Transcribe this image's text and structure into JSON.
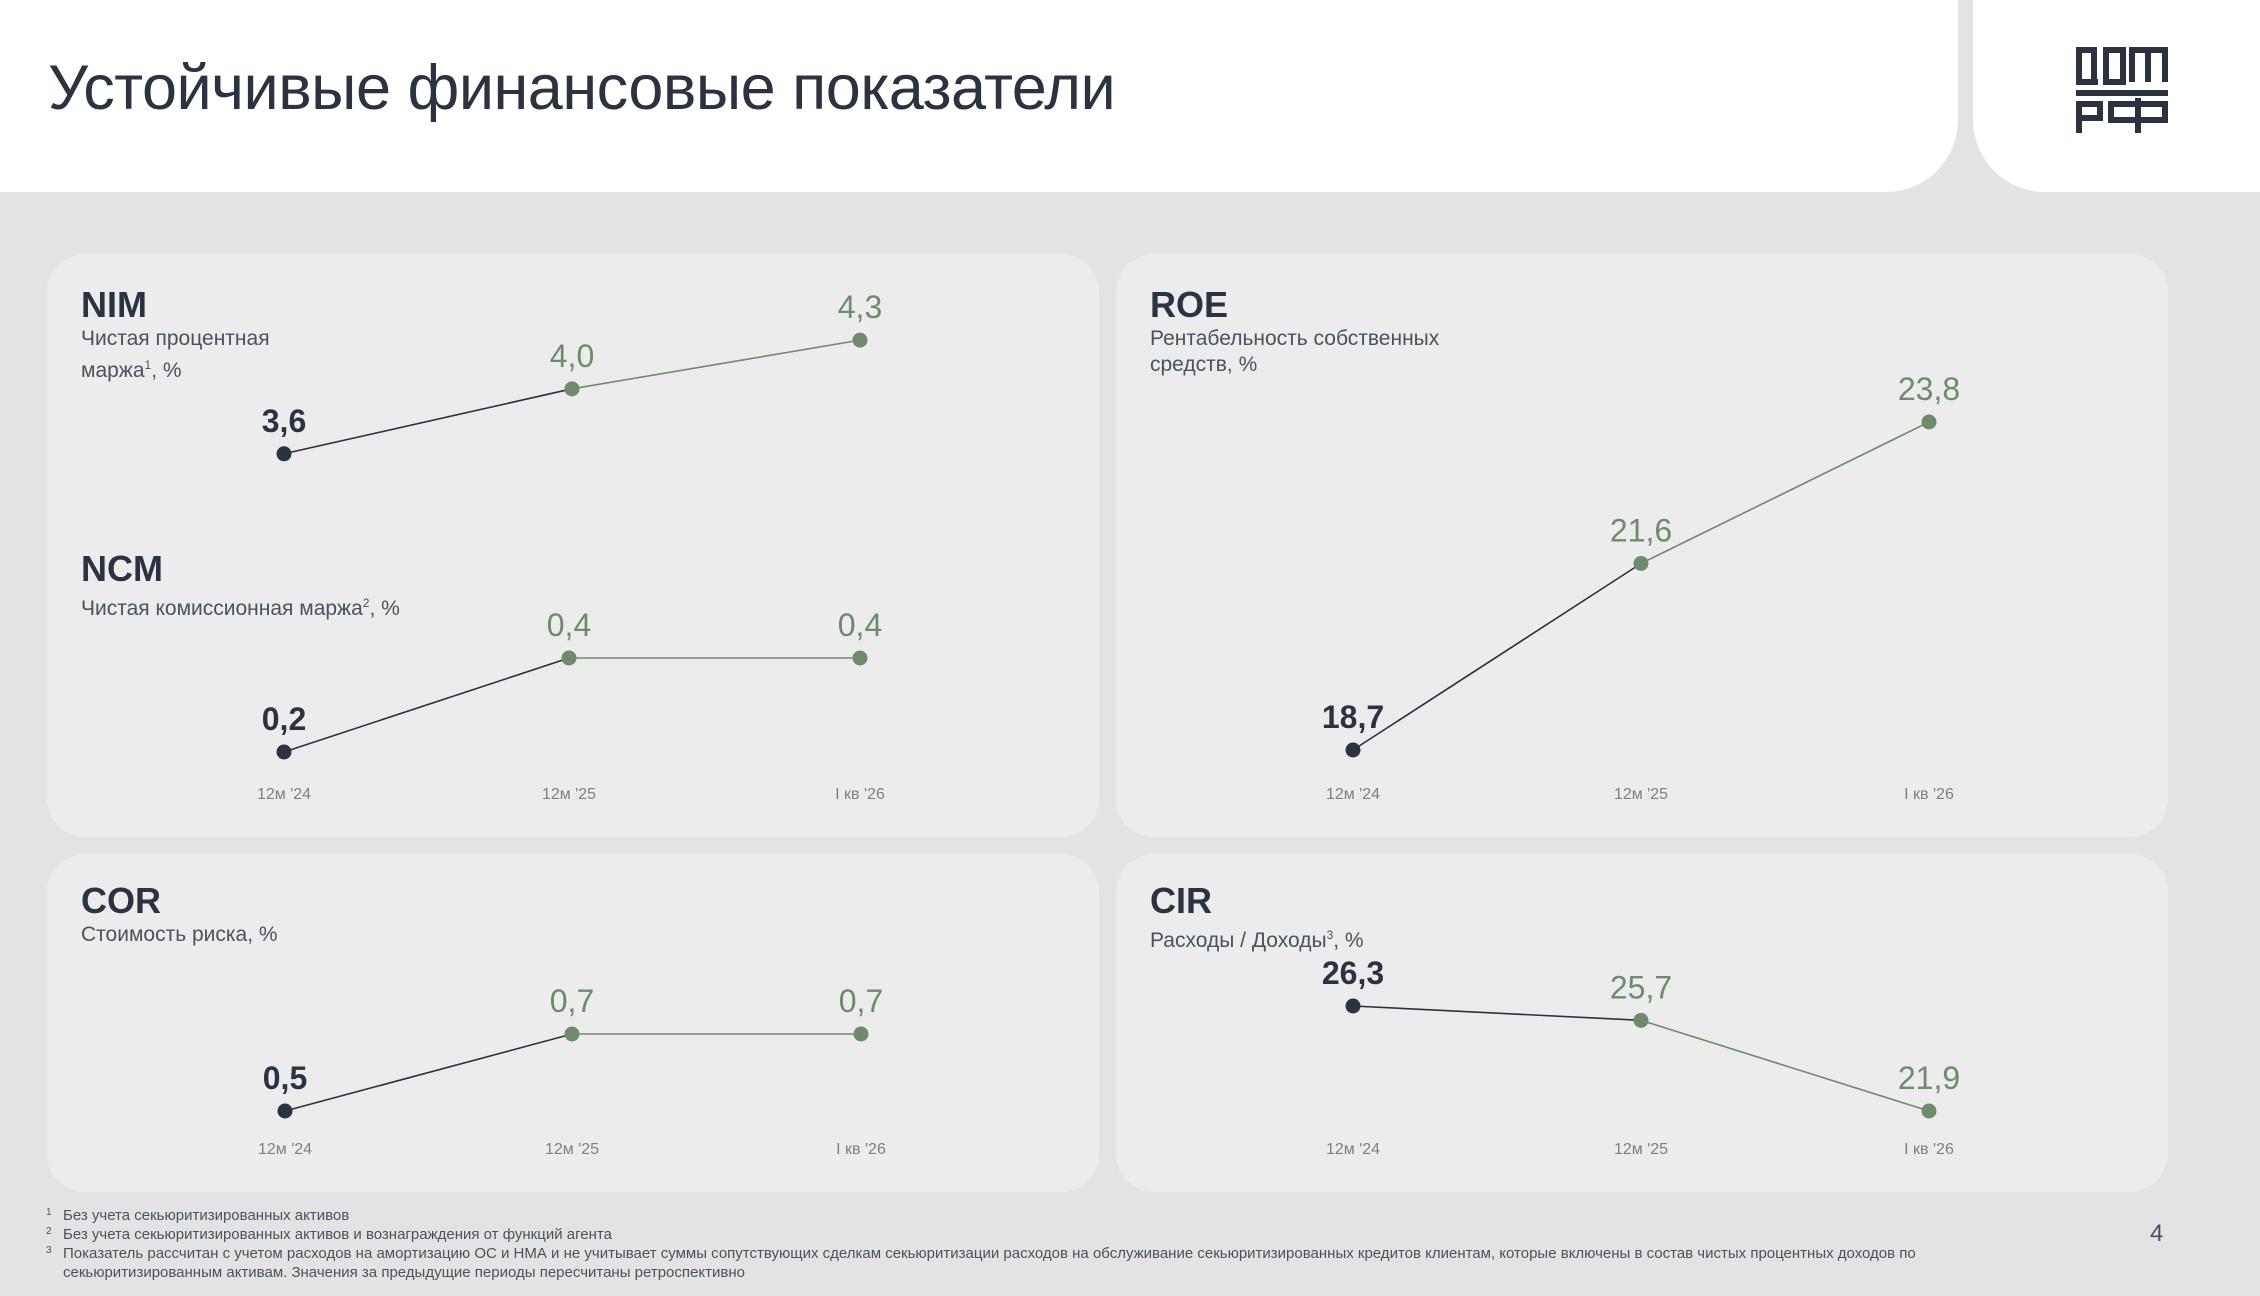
{
  "page": {
    "title": "Устойчивые финансовые показатели",
    "page_number": "4",
    "logo_text": "ДОМ РФ"
  },
  "colors": {
    "accent_green": "#6e8c6c",
    "dark": "#2b3340",
    "card_bg": "#ececec",
    "page_bg": "#e3e3e3"
  },
  "metrics": {
    "nim": {
      "title": "NIM",
      "subtitle_before": "Чистая процентная маржа",
      "note": "1",
      "subtitle_after": ", %"
    },
    "ncm": {
      "title": "NCM",
      "subtitle_before": "Чистая комиссионная маржа",
      "note": "2",
      "subtitle_after": ", %"
    },
    "roe": {
      "title": "ROE",
      "subtitle_before": "Рентабельность собственных средств, %",
      "note": "",
      "subtitle_after": ""
    },
    "cor": {
      "title": "COR",
      "subtitle_before": "Стоимость риска, %",
      "note": "",
      "subtitle_after": ""
    },
    "cir": {
      "title": "CIR",
      "subtitle_before": "Расходы / Доходы",
      "note": "3",
      "subtitle_after": ", %"
    }
  },
  "chart_data": [
    {
      "id": "nim",
      "type": "line",
      "title": "NIM",
      "categories": [
        "12м '24",
        "12м '25",
        "I кв '26"
      ],
      "values": [
        3.6,
        4.0,
        4.3
      ],
      "labels": [
        "3,6",
        "4,0",
        "4,3"
      ],
      "show_x_labels": false
    },
    {
      "id": "ncm",
      "type": "line",
      "title": "NCM",
      "categories": [
        "12м '24",
        "12м '25",
        "I кв '26"
      ],
      "values": [
        0.2,
        0.4,
        0.4
      ],
      "labels": [
        "0,2",
        "0,4",
        "0,4"
      ],
      "show_x_labels": true
    },
    {
      "id": "roe",
      "type": "line",
      "title": "ROE",
      "categories": [
        "12м '24",
        "12м '25",
        "I кв '26"
      ],
      "values": [
        18.7,
        21.6,
        23.8
      ],
      "labels": [
        "18,7",
        "21,6",
        "23,8"
      ],
      "show_x_labels": true
    },
    {
      "id": "cor",
      "type": "line",
      "title": "COR",
      "categories": [
        "12м '24",
        "12м '25",
        "I кв '26"
      ],
      "values": [
        0.5,
        0.7,
        0.7
      ],
      "labels": [
        "0,5",
        "0,7",
        "0,7"
      ],
      "show_x_labels": true
    },
    {
      "id": "cir",
      "type": "line",
      "title": "CIR",
      "categories": [
        "12м '24",
        "12м '25",
        "I кв '26"
      ],
      "values": [
        26.3,
        25.7,
        21.9
      ],
      "labels": [
        "26,3",
        "25,7",
        "21,9"
      ],
      "show_x_labels": true
    }
  ],
  "footnotes": [
    {
      "num": "1",
      "text": "Без учета секьюритизированных активов"
    },
    {
      "num": "2",
      "text": "Без учета секьюритизированных активов и вознаграждения от функций агента"
    },
    {
      "num": "3",
      "text": "Показатель рассчитан с учетом расходов на амортизацию ОС и НМА и не учитывает суммы сопутствующих сделкам секьюритизации расходов на обслуживание секьюритизированных кредитов клиентам, которые включены в состав чистых процентных доходов по секьюритизированным активам. Значения за предыдущие периоды пересчитаны ретроспективно"
    }
  ]
}
